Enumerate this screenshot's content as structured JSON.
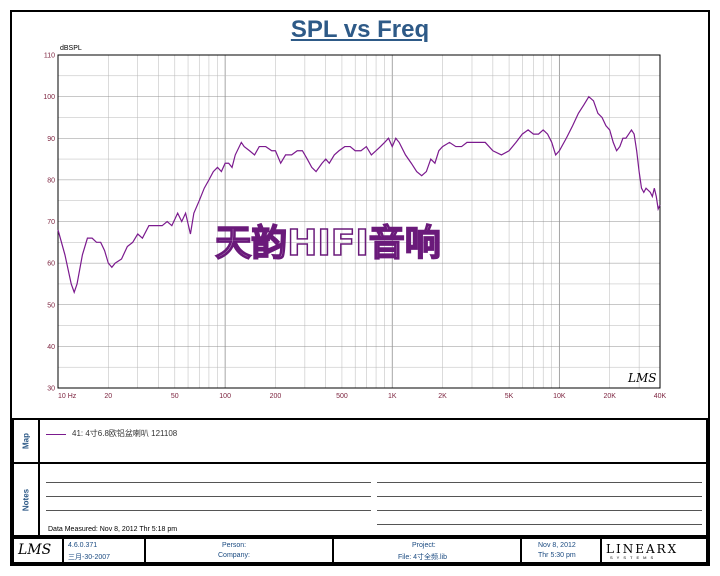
{
  "chart_data": {
    "type": "line",
    "title": "SPL vs Freq",
    "ylabel": "dBSPL",
    "xlabel": "",
    "xscale": "log",
    "xlim": [
      10,
      40000
    ],
    "ylim": [
      30,
      110
    ],
    "grid": true,
    "x_ticks": [
      {
        "value": 10,
        "label": "10 Hz"
      },
      {
        "value": 20,
        "label": "20"
      },
      {
        "value": 50,
        "label": "50"
      },
      {
        "value": 100,
        "label": "100"
      },
      {
        "value": 200,
        "label": "200"
      },
      {
        "value": 500,
        "label": "500"
      },
      {
        "value": 1000,
        "label": "1K"
      },
      {
        "value": 2000,
        "label": "2K"
      },
      {
        "value": 5000,
        "label": "5K"
      },
      {
        "value": 10000,
        "label": "10K"
      },
      {
        "value": 20000,
        "label": "20K"
      },
      {
        "value": 40000,
        "label": "40K"
      }
    ],
    "y_ticks": [
      110,
      100,
      90,
      80,
      70,
      60,
      50,
      40,
      30
    ],
    "series": [
      {
        "name": "41: 4寸6.8欧铝盆喇叭 121108",
        "color": "#7b1a8e",
        "points": [
          [
            10,
            68
          ],
          [
            11,
            62
          ],
          [
            12,
            55
          ],
          [
            12.5,
            53
          ],
          [
            13,
            55
          ],
          [
            14,
            62
          ],
          [
            15,
            66
          ],
          [
            16,
            66
          ],
          [
            17,
            65
          ],
          [
            18,
            65
          ],
          [
            19,
            63
          ],
          [
            20,
            60
          ],
          [
            21,
            59
          ],
          [
            22,
            60
          ],
          [
            24,
            61
          ],
          [
            26,
            64
          ],
          [
            28,
            65
          ],
          [
            30,
            67
          ],
          [
            32,
            66
          ],
          [
            35,
            69
          ],
          [
            38,
            69
          ],
          [
            42,
            69
          ],
          [
            45,
            70
          ],
          [
            48,
            69
          ],
          [
            52,
            72
          ],
          [
            55,
            70
          ],
          [
            58,
            72
          ],
          [
            62,
            67
          ],
          [
            65,
            72
          ],
          [
            70,
            75
          ],
          [
            75,
            78
          ],
          [
            80,
            80
          ],
          [
            85,
            82
          ],
          [
            90,
            83
          ],
          [
            95,
            82
          ],
          [
            100,
            84
          ],
          [
            105,
            84
          ],
          [
            110,
            83
          ],
          [
            115,
            86
          ],
          [
            125,
            89
          ],
          [
            130,
            88
          ],
          [
            140,
            87
          ],
          [
            150,
            86
          ],
          [
            160,
            88
          ],
          [
            175,
            88
          ],
          [
            190,
            87
          ],
          [
            200,
            87
          ],
          [
            215,
            84
          ],
          [
            230,
            86
          ],
          [
            250,
            86
          ],
          [
            270,
            87
          ],
          [
            290,
            87
          ],
          [
            310,
            85
          ],
          [
            330,
            83
          ],
          [
            350,
            82
          ],
          [
            380,
            84
          ],
          [
            400,
            85
          ],
          [
            420,
            84
          ],
          [
            450,
            86
          ],
          [
            480,
            87
          ],
          [
            520,
            88
          ],
          [
            560,
            88
          ],
          [
            600,
            87
          ],
          [
            650,
            87
          ],
          [
            700,
            88
          ],
          [
            750,
            86
          ],
          [
            800,
            87
          ],
          [
            850,
            88
          ],
          [
            900,
            89
          ],
          [
            950,
            90
          ],
          [
            1000,
            88
          ],
          [
            1050,
            90
          ],
          [
            1100,
            89
          ],
          [
            1200,
            86
          ],
          [
            1300,
            84
          ],
          [
            1400,
            82
          ],
          [
            1500,
            81
          ],
          [
            1600,
            82
          ],
          [
            1700,
            85
          ],
          [
            1800,
            84
          ],
          [
            1900,
            87
          ],
          [
            2000,
            88
          ],
          [
            2200,
            89
          ],
          [
            2400,
            88
          ],
          [
            2600,
            88
          ],
          [
            2800,
            89
          ],
          [
            3000,
            89
          ],
          [
            3300,
            89
          ],
          [
            3600,
            89
          ],
          [
            4000,
            87
          ],
          [
            4500,
            86
          ],
          [
            5000,
            87
          ],
          [
            5500,
            89
          ],
          [
            6000,
            91
          ],
          [
            6500,
            92
          ],
          [
            7000,
            91
          ],
          [
            7500,
            91
          ],
          [
            8000,
            92
          ],
          [
            8500,
            91
          ],
          [
            9000,
            89
          ],
          [
            9500,
            86
          ],
          [
            10000,
            87
          ],
          [
            11000,
            90
          ],
          [
            12000,
            93
          ],
          [
            13000,
            96
          ],
          [
            14000,
            98
          ],
          [
            15000,
            100
          ],
          [
            16000,
            99
          ],
          [
            17000,
            96
          ],
          [
            18000,
            95
          ],
          [
            19000,
            93
          ],
          [
            20000,
            92
          ],
          [
            21000,
            89
          ],
          [
            22000,
            87
          ],
          [
            23000,
            88
          ],
          [
            24000,
            90
          ],
          [
            25000,
            90
          ],
          [
            26000,
            91
          ],
          [
            27000,
            92
          ],
          [
            28000,
            91
          ],
          [
            29000,
            87
          ],
          [
            30000,
            82
          ],
          [
            31000,
            78
          ],
          [
            32000,
            77
          ],
          [
            33000,
            78
          ],
          [
            35000,
            77
          ],
          [
            36000,
            76
          ],
          [
            37000,
            78
          ],
          [
            38000,
            76
          ],
          [
            39000,
            73
          ],
          [
            40000,
            74
          ]
        ]
      }
    ]
  },
  "watermark": "天韵HIFI音响",
  "panels": {
    "map_label": "Map",
    "notes_label": "Notes",
    "data_measured": "Data Measured: Nov  8, 2012  Thr  5:18 pm"
  },
  "footer": {
    "logo": "LMS",
    "version": "4.6.0.371",
    "version_date": "三月-30-2007",
    "person_label": "Person:",
    "company_label": "Company:",
    "project_label": "Project:",
    "file_label": "File: 4寸全频.lib",
    "date": "Nov  8, 2012",
    "time": "Thr  5:30 pm",
    "brand": "LINEARX",
    "brand_sub": "SYSTEMS"
  },
  "plot_logo": "LMS",
  "colors": {
    "title": "#2e5a87",
    "trace": "#7b1a8e",
    "axis_labels": "#7a1f3b",
    "grid": "#b8b8b8"
  }
}
